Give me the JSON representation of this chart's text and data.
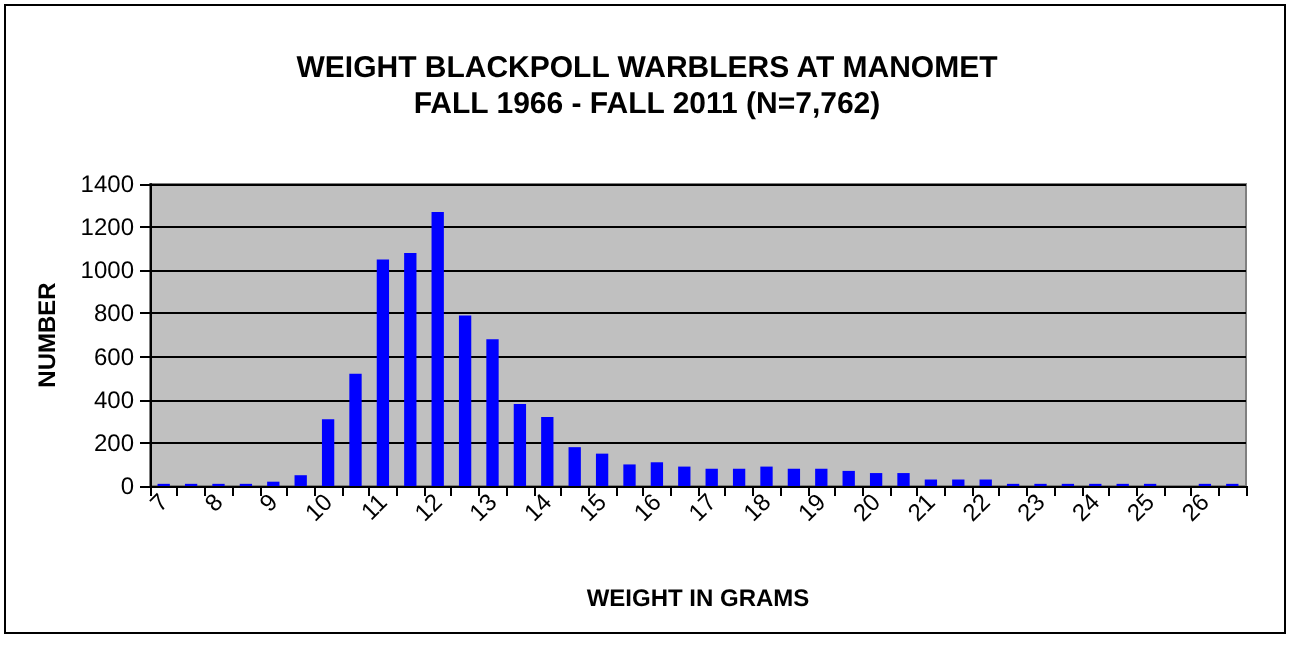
{
  "chart_data": {
    "type": "bar",
    "title": "WEIGHT BLACKPOLL WARBLERS AT MANOMET\nFALL 1966 - FALL 2011 (N=7,762)",
    "xlabel": "WEIGHT IN GRAMS",
    "ylabel": "NUMBER",
    "categories": [
      "7",
      null,
      "8",
      null,
      "9",
      null,
      "10",
      null,
      "11",
      null,
      "12",
      null,
      "13",
      null,
      "14",
      null,
      "15",
      null,
      "16",
      null,
      "17",
      null,
      "18",
      null,
      "19",
      null,
      "20",
      null,
      "21",
      null,
      "22",
      null,
      "23",
      null,
      "24",
      null,
      "25",
      null,
      "26",
      null
    ],
    "values": [
      10,
      10,
      10,
      10,
      20,
      50,
      310,
      520,
      1050,
      1080,
      1270,
      790,
      680,
      380,
      320,
      180,
      150,
      100,
      110,
      90,
      80,
      80,
      90,
      80,
      80,
      70,
      60,
      60,
      30,
      30,
      30,
      10,
      10,
      10,
      10,
      10,
      10,
      0,
      10,
      10
    ],
    "color": "#0000ff",
    "ylim": [
      0,
      1400
    ],
    "yticks": [
      0,
      200,
      400,
      600,
      800,
      1000,
      1200,
      1400
    ],
    "grid": "y"
  }
}
